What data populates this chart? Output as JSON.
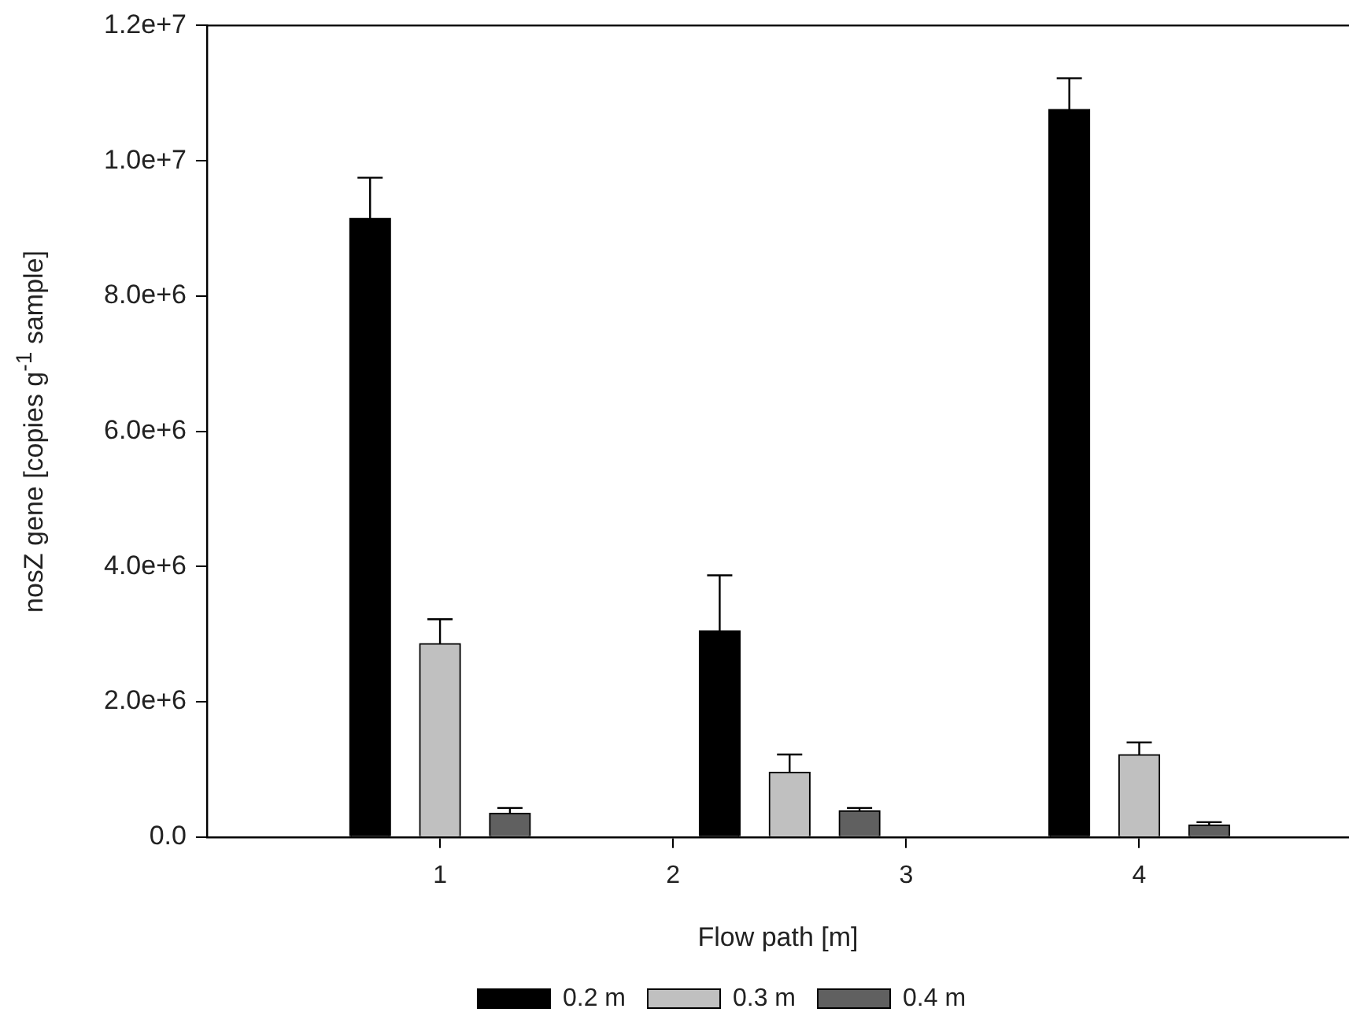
{
  "chart_data": {
    "type": "bar",
    "xlabel": "Flow path [m]",
    "ylabel": "nosZ gene [copies g$^{-1}$ sample]",
    "xlim": [
      0,
      4.9
    ],
    "xticks": [
      1,
      2,
      3,
      4
    ],
    "ylim": [
      0,
      12000000
    ],
    "yticks": [
      {
        "value": 0,
        "label": "0.0"
      },
      {
        "value": 2000000,
        "label": "2.0e+6"
      },
      {
        "value": 4000000,
        "label": "4.0e+6"
      },
      {
        "value": 6000000,
        "label": "6.0e+6"
      },
      {
        "value": 8000000,
        "label": "8.0e+6"
      },
      {
        "value": 10000000,
        "label": "1.0e+7"
      },
      {
        "value": 12000000,
        "label": "1.2e+7"
      }
    ],
    "legend": "bottom",
    "grid": false,
    "series": [
      {
        "name": "0.2 m",
        "color": "#000000",
        "x": [
          0.7,
          2.2,
          3.7
        ],
        "values": [
          9150000,
          3050000,
          10760000
        ],
        "errors": [
          [
            9150000,
            9750000
          ],
          [
            3050000,
            3870000
          ],
          [
            10760000,
            11220000
          ]
        ]
      },
      {
        "name": "0.3 m",
        "color": "#c0c0c0",
        "x": [
          1.0,
          2.5,
          4.0
        ],
        "values": [
          2860000,
          960000,
          1220000
        ],
        "errors": [
          [
            2860000,
            3220000
          ],
          [
            960000,
            1220000
          ],
          [
            1220000,
            1400000
          ]
        ]
      },
      {
        "name": "0.4 m",
        "color": "#606060",
        "x": [
          1.3,
          2.8,
          4.3
        ],
        "values": [
          350000,
          390000,
          180000
        ],
        "errors": [
          [
            350000,
            430000
          ],
          [
            390000,
            430000
          ],
          [
            180000,
            220000
          ]
        ]
      }
    ]
  }
}
